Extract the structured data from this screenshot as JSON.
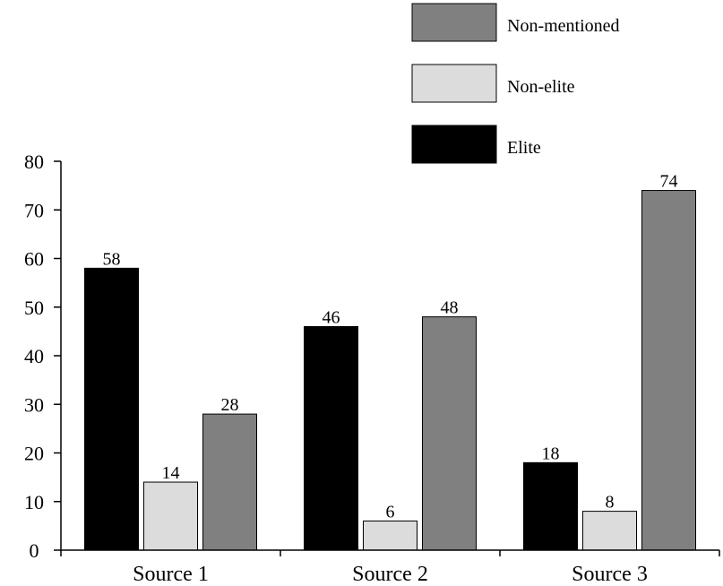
{
  "chart_data": {
    "type": "bar",
    "categories": [
      "Source 1",
      "Source 2",
      "Source 3"
    ],
    "series": [
      {
        "name": "Elite",
        "color": "#000000",
        "values": [
          58,
          46,
          18
        ]
      },
      {
        "name": "Non-elite",
        "color": "#dcdcdc",
        "values": [
          14,
          6,
          8
        ]
      },
      {
        "name": "Non-mentioned",
        "color": "#808080",
        "values": [
          28,
          48,
          74
        ]
      }
    ],
    "legend_order": [
      "Non-mentioned",
      "Non-elite",
      "Elite"
    ],
    "ylim": [
      0,
      80
    ],
    "yticks": [
      0,
      10,
      20,
      30,
      40,
      50,
      60,
      70,
      80
    ],
    "ytick_labels": [
      "0",
      "10",
      "20",
      "30",
      "40",
      "50",
      "60",
      "70",
      "80"
    ],
    "title": "",
    "xlabel": "",
    "ylabel": "",
    "grid": false,
    "legend_position": "top-right"
  }
}
